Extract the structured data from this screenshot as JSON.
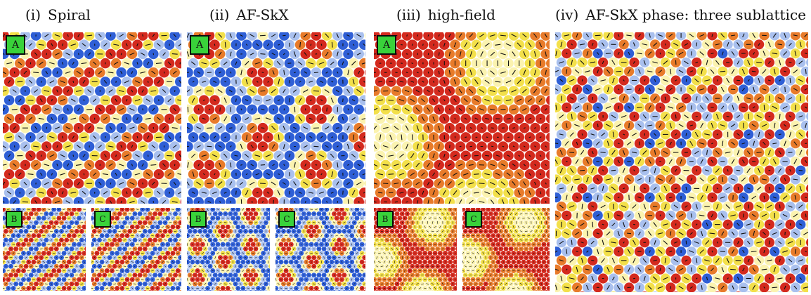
{
  "columns": [
    {
      "id": "spiral",
      "number": "(i)",
      "title": "Spiral",
      "color_mode": "spiral"
    },
    {
      "id": "afskx",
      "number": "(ii)",
      "title": "AF-SkX",
      "color_mode": "afskx"
    },
    {
      "id": "highfield",
      "number": "(iii)",
      "title": "high-field",
      "color_mode": "highfield"
    },
    {
      "id": "sublattice",
      "number": "(iv)",
      "title": "AF-SkX phase: three sublattice",
      "color_mode": "sublattice"
    }
  ],
  "panel_labels": {
    "a": "A",
    "b": "B",
    "c": "C"
  },
  "palette": {
    "down": "#2f5fd6",
    "down_light": "#a9c0ee",
    "up": "#d42a1e",
    "up_mid": "#e87b2a",
    "inplane": "#f3e04a",
    "inplane_light": "#fbf3b0",
    "tag_green": "#39d23a",
    "arrow": "#111111"
  }
}
